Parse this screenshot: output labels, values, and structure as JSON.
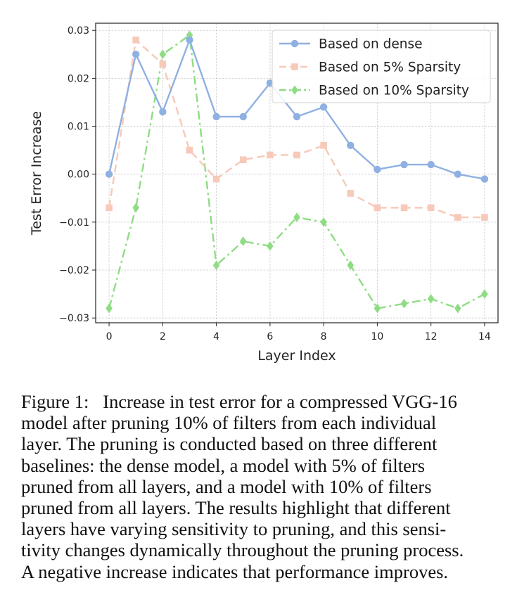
{
  "chart_data": {
    "type": "line",
    "xlabel": "Layer Index",
    "ylabel": "Test Error Increase",
    "xlim": [
      -0.5,
      14.5
    ],
    "ylim": [
      -0.031,
      0.0315
    ],
    "xticks": [
      "0",
      "2",
      "4",
      "6",
      "8",
      "10",
      "12",
      "14"
    ],
    "xtick_values": [
      0,
      2,
      4,
      6,
      8,
      10,
      12,
      14
    ],
    "yticks": [
      "0.03",
      "0.02",
      "0.01",
      "0.00",
      "−0.01",
      "−0.02",
      "−0.03"
    ],
    "ytick_values": [
      0.03,
      0.02,
      0.01,
      0.0,
      -0.01,
      -0.02,
      -0.03
    ],
    "grid": true,
    "legend_position": "top-right",
    "x": [
      0,
      1,
      2,
      3,
      4,
      5,
      6,
      7,
      8,
      9,
      10,
      11,
      12,
      13,
      14
    ],
    "series": [
      {
        "name": "Based on dense",
        "color": "#8fb0e3",
        "marker": "circle",
        "linestyle": "solid",
        "values": [
          0.0,
          0.025,
          0.013,
          0.028,
          0.012,
          0.012,
          0.019,
          0.012,
          0.014,
          0.006,
          0.001,
          0.002,
          0.002,
          0.0,
          -0.001
        ]
      },
      {
        "name": "Based on 5% Sparsity",
        "color": "#f7c9b8",
        "marker": "square",
        "linestyle": "dashed",
        "values": [
          -0.007,
          0.028,
          0.023,
          0.005,
          -0.001,
          0.003,
          0.004,
          0.004,
          0.006,
          -0.004,
          -0.007,
          -0.007,
          -0.007,
          -0.009,
          -0.009
        ]
      },
      {
        "name": "Based on 10% Sparsity",
        "color": "#8fdc84",
        "marker": "diamond",
        "linestyle": "dashdot",
        "values": [
          -0.028,
          -0.007,
          0.025,
          0.029,
          -0.019,
          -0.014,
          -0.015,
          -0.009,
          -0.01,
          -0.019,
          -0.028,
          -0.027,
          -0.026,
          -0.028,
          -0.025
        ]
      }
    ]
  },
  "caption": {
    "lines": [
      "Figure 1:  Increase in test error for a compressed VGG-16",
      "model after pruning 10% of filters from each individual",
      "layer. The pruning is conducted based on three different",
      "baselines: the dense model, a model with 5% of filters",
      "pruned from all layers, and a model with 10% of filters",
      "pruned from all layers. The results highlight that different",
      "layers have varying sensitivity to pruning, and this sensi-",
      "tivity changes dynamically throughout the pruning process.",
      "A negative increase indicates that performance improves."
    ]
  }
}
